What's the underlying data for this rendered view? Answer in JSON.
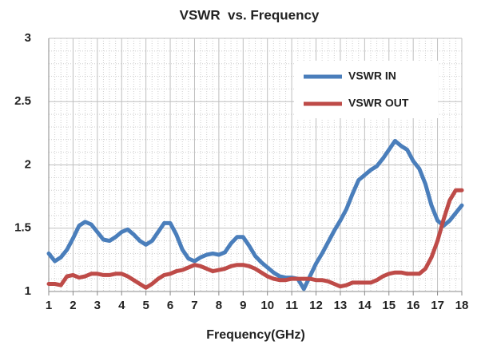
{
  "chart_data": {
    "type": "line",
    "title": "VSWR  vs. Frequency",
    "x_label": "Frequency(GHz)",
    "x": [
      1,
      1.25,
      1.5,
      1.75,
      2,
      2.25,
      2.5,
      2.75,
      3,
      3.25,
      3.5,
      3.75,
      4,
      4.25,
      4.5,
      4.75,
      5,
      5.25,
      5.5,
      5.75,
      6,
      6.25,
      6.5,
      6.75,
      7,
      7.25,
      7.5,
      7.75,
      8,
      8.25,
      8.5,
      8.75,
      9,
      9.25,
      9.5,
      9.75,
      10,
      10.25,
      10.5,
      10.75,
      11,
      11.25,
      11.5,
      11.75,
      12,
      12.25,
      12.5,
      12.75,
      13,
      13.25,
      13.5,
      13.75,
      14,
      14.25,
      14.5,
      14.75,
      15,
      15.25,
      15.5,
      15.75,
      16,
      16.25,
      16.5,
      16.75,
      17,
      17.25,
      17.5,
      17.75,
      18
    ],
    "series": [
      {
        "name": "VSWR IN",
        "color": "#4a7ebb",
        "values": [
          1.3,
          1.24,
          1.27,
          1.33,
          1.42,
          1.52,
          1.55,
          1.53,
          1.47,
          1.41,
          1.4,
          1.43,
          1.47,
          1.49,
          1.45,
          1.4,
          1.37,
          1.4,
          1.47,
          1.54,
          1.54,
          1.45,
          1.33,
          1.26,
          1.24,
          1.27,
          1.29,
          1.3,
          1.29,
          1.31,
          1.38,
          1.43,
          1.43,
          1.36,
          1.28,
          1.23,
          1.19,
          1.15,
          1.12,
          1.11,
          1.11,
          1.1,
          1.02,
          1.12,
          1.22,
          1.3,
          1.39,
          1.48,
          1.56,
          1.65,
          1.77,
          1.88,
          1.92,
          1.96,
          1.99,
          2.05,
          2.12,
          2.19,
          2.15,
          2.12,
          2.03,
          1.97,
          1.85,
          1.68,
          1.56,
          1.52,
          1.56,
          1.62,
          1.68
        ]
      },
      {
        "name": "VSWR OUT",
        "color": "#be4b48",
        "values": [
          1.06,
          1.06,
          1.05,
          1.12,
          1.13,
          1.11,
          1.12,
          1.14,
          1.14,
          1.13,
          1.13,
          1.14,
          1.14,
          1.12,
          1.09,
          1.06,
          1.03,
          1.06,
          1.1,
          1.13,
          1.14,
          1.16,
          1.17,
          1.19,
          1.21,
          1.2,
          1.18,
          1.16,
          1.17,
          1.18,
          1.2,
          1.21,
          1.21,
          1.2,
          1.18,
          1.15,
          1.12,
          1.1,
          1.09,
          1.09,
          1.1,
          1.1,
          1.1,
          1.1,
          1.09,
          1.09,
          1.08,
          1.06,
          1.04,
          1.05,
          1.07,
          1.07,
          1.07,
          1.07,
          1.09,
          1.12,
          1.14,
          1.15,
          1.15,
          1.14,
          1.14,
          1.14,
          1.18,
          1.27,
          1.4,
          1.57,
          1.72,
          1.8,
          1.8
        ]
      }
    ],
    "xlim": [
      1,
      18
    ],
    "xticks": [
      1,
      2,
      3,
      4,
      5,
      6,
      7,
      8,
      9,
      10,
      11,
      12,
      13,
      14,
      15,
      16,
      17,
      18
    ],
    "ylim": [
      1,
      3
    ],
    "yticks": [
      1,
      1.5,
      2,
      2.5,
      3
    ],
    "grid": true,
    "legend": "upper right"
  }
}
